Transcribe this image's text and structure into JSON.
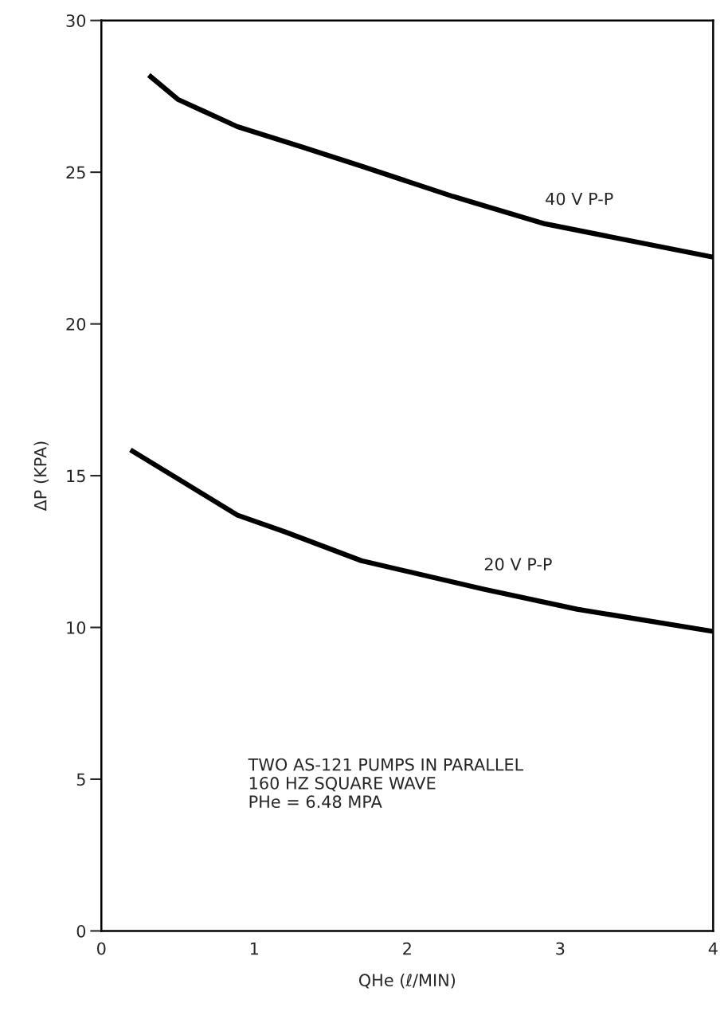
{
  "chart_data": {
    "type": "line",
    "xlabel": "QHe (ℓ/MIN)",
    "ylabel": "ΔP (KPA)",
    "xlim": [
      0,
      4
    ],
    "xticks": [
      0,
      1,
      2,
      3,
      4
    ],
    "ylim": [
      0,
      30
    ],
    "yticks": [
      0,
      5,
      10,
      15,
      20,
      25,
      30
    ],
    "grid": false,
    "marker": "none",
    "line_style": "solid",
    "series": [
      {
        "name": "40 V P-P",
        "color": "#000000",
        "x": [
          0.31,
          0.5,
          0.89,
          1.3,
          1.7,
          2.3,
          2.9,
          3.5,
          4.0
        ],
        "values": [
          28.2,
          27.4,
          26.5,
          25.85,
          25.2,
          24.2,
          23.3,
          22.7,
          22.2
        ]
      },
      {
        "name": "20 V P-P",
        "color": "#000000",
        "x": [
          0.19,
          0.5,
          0.89,
          1.2,
          1.7,
          2.5,
          3.11,
          4.0
        ],
        "values": [
          15.85,
          14.9,
          13.7,
          13.15,
          12.2,
          11.26,
          10.6,
          9.87
        ]
      }
    ],
    "annotations": [
      "TWO AS-121 PUMPS IN PARALLEL\n160 HZ SQUARE WAVE\nPHe = 6.48 MPA"
    ]
  }
}
